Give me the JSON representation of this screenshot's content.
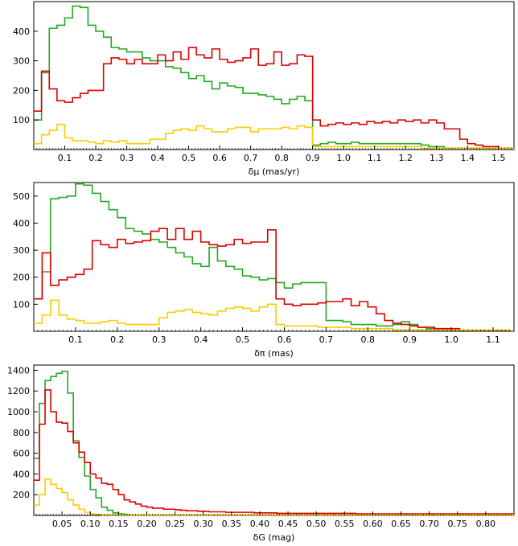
{
  "chart_data": [
    {
      "type": "histogram",
      "xlabel": "δμ (mas/yr)",
      "ylabel": "",
      "xlim": [
        0,
        1.55
      ],
      "ylim": [
        0,
        500
      ],
      "xticks": [
        0.1,
        0.2,
        0.3,
        0.4,
        0.5,
        0.6,
        0.7,
        0.8,
        0.9,
        1.0,
        1.1,
        1.2,
        1.3,
        1.4,
        1.5
      ],
      "xtick_labels": [
        "0.1",
        "0.2",
        "0.3",
        "0.4",
        "0.5",
        "0.6",
        "0.7",
        "0.8",
        "0.9",
        "1.0",
        "1.1",
        "1.2",
        "1.3",
        "1.4",
        "1.5"
      ],
      "yticks": [
        100,
        200,
        300,
        400
      ],
      "ytick_labels": [
        "100",
        "200",
        "300",
        "400"
      ],
      "x_minor_step": 0.01,
      "bin_width": 0.025,
      "series": [
        {
          "color": "#22aa22",
          "values": [
            100,
            260,
            410,
            420,
            445,
            485,
            480,
            420,
            400,
            380,
            345,
            340,
            330,
            330,
            310,
            300,
            300,
            280,
            275,
            260,
            240,
            250,
            230,
            205,
            225,
            215,
            210,
            190,
            190,
            185,
            180,
            170,
            155,
            170,
            180,
            165,
            15,
            20,
            25,
            20,
            20,
            25,
            20,
            20,
            20,
            20,
            20,
            20,
            20,
            20,
            15,
            10,
            10,
            5,
            5,
            5,
            5,
            5,
            5,
            5,
            5,
            5
          ]
        },
        {
          "color": "#dd0000",
          "values": [
            130,
            265,
            205,
            165,
            160,
            175,
            190,
            200,
            200,
            290,
            310,
            305,
            290,
            305,
            290,
            290,
            320,
            300,
            330,
            305,
            345,
            320,
            310,
            340,
            305,
            295,
            300,
            310,
            340,
            285,
            290,
            330,
            285,
            290,
            320,
            315,
            100,
            80,
            85,
            90,
            85,
            90,
            85,
            95,
            90,
            95,
            90,
            100,
            95,
            100,
            90,
            100,
            90,
            70,
            70,
            35,
            20,
            15,
            10,
            10,
            5,
            5
          ]
        },
        {
          "color": "#ffcc00",
          "values": [
            20,
            50,
            65,
            85,
            40,
            30,
            30,
            25,
            20,
            30,
            25,
            30,
            20,
            20,
            20,
            35,
            35,
            55,
            65,
            70,
            65,
            80,
            70,
            60,
            60,
            70,
            75,
            75,
            60,
            70,
            70,
            70,
            75,
            70,
            80,
            75,
            10,
            10,
            10,
            10,
            10,
            10,
            10,
            10,
            10,
            10,
            10,
            10,
            10,
            10,
            5,
            5,
            5,
            5,
            5,
            5,
            5,
            5,
            5,
            5,
            5,
            5
          ]
        }
      ]
    },
    {
      "type": "histogram",
      "xlabel": "δπ (mas)",
      "ylabel": "",
      "xlim": [
        0,
        1.15
      ],
      "ylim": [
        0,
        550
      ],
      "xticks": [
        0.1,
        0.2,
        0.3,
        0.4,
        0.5,
        0.6,
        0.7,
        0.8,
        0.9,
        1.0,
        1.1
      ],
      "xtick_labels": [
        "0.1",
        "0.2",
        "0.3",
        "0.4",
        "0.5",
        "0.6",
        "0.7",
        "0.8",
        "0.9",
        "1.0",
        "1.1"
      ],
      "yticks": [
        100,
        200,
        300,
        400,
        500
      ],
      "ytick_labels": [
        "100",
        "200",
        "300",
        "400",
        "500"
      ],
      "x_minor_step": 0.01,
      "bin_width": 0.02,
      "series": [
        {
          "color": "#22aa22",
          "values": [
            120,
            220,
            490,
            495,
            500,
            545,
            540,
            510,
            480,
            450,
            420,
            380,
            370,
            360,
            340,
            330,
            310,
            290,
            275,
            250,
            240,
            310,
            260,
            240,
            230,
            205,
            200,
            190,
            195,
            180,
            160,
            175,
            180,
            180,
            180,
            40,
            40,
            35,
            25,
            25,
            25,
            20,
            20,
            25,
            35,
            25,
            15,
            10,
            10,
            5,
            5,
            5,
            5,
            5,
            5,
            5,
            5
          ]
        },
        {
          "color": "#dd0000",
          "values": [
            120,
            290,
            170,
            190,
            200,
            210,
            230,
            335,
            320,
            310,
            340,
            325,
            330,
            335,
            370,
            380,
            340,
            380,
            340,
            370,
            330,
            320,
            315,
            320,
            340,
            325,
            330,
            330,
            375,
            120,
            100,
            95,
            100,
            100,
            105,
            110,
            110,
            120,
            95,
            110,
            90,
            65,
            40,
            30,
            25,
            20,
            15,
            15,
            10,
            10,
            10,
            5,
            5,
            5,
            5,
            5,
            5
          ]
        },
        {
          "color": "#ffcc00",
          "values": [
            30,
            60,
            115,
            60,
            45,
            40,
            30,
            30,
            35,
            40,
            30,
            25,
            25,
            25,
            25,
            50,
            70,
            75,
            80,
            70,
            65,
            60,
            75,
            85,
            90,
            85,
            75,
            90,
            100,
            25,
            20,
            20,
            20,
            20,
            15,
            15,
            15,
            15,
            10,
            10,
            10,
            10,
            10,
            5,
            5,
            5,
            5,
            5,
            5,
            5,
            5,
            5,
            5,
            5,
            5,
            5,
            5
          ]
        }
      ]
    },
    {
      "type": "histogram",
      "xlabel": "δG (mag)",
      "ylabel": "",
      "xlim": [
        0,
        0.85
      ],
      "ylim": [
        0,
        1450
      ],
      "xticks": [
        0.05,
        0.1,
        0.15,
        0.2,
        0.25,
        0.3,
        0.35,
        0.4,
        0.45,
        0.5,
        0.55,
        0.6,
        0.65,
        0.7,
        0.75,
        0.8
      ],
      "xtick_labels": [
        "0.05",
        "0.10",
        "0.15",
        "0.20",
        "0.25",
        "0.30",
        "0.35",
        "0.40",
        "0.45",
        "0.50",
        "0.55",
        "0.60",
        "0.65",
        "0.70",
        "0.75",
        "0.80"
      ],
      "yticks": [
        200,
        400,
        600,
        800,
        1000,
        1200,
        1400
      ],
      "ytick_labels": [
        "200",
        "400",
        "600",
        "800",
        "1000",
        "1200",
        "1400"
      ],
      "x_minor_step": 0.005,
      "bin_width": 0.01,
      "series": [
        {
          "color": "#22aa22",
          "values": [
            550,
            1080,
            1300,
            1340,
            1370,
            1390,
            1180,
            720,
            560,
            380,
            250,
            170,
            80,
            50,
            25,
            15,
            10,
            5,
            5,
            5,
            5,
            5,
            5,
            5,
            5,
            5,
            5,
            5,
            5,
            5,
            5,
            5,
            5,
            5,
            5,
            5,
            5,
            5,
            5,
            5,
            5,
            5,
            5,
            5,
            5,
            5,
            5,
            5,
            5,
            5,
            5,
            5,
            5,
            5,
            5,
            5,
            5,
            5,
            5,
            5,
            5,
            5,
            5,
            5,
            5,
            5,
            5,
            5,
            5,
            5,
            5,
            5,
            5,
            5,
            5,
            5,
            5,
            5,
            5,
            5,
            5,
            5,
            5,
            5,
            5
          ]
        },
        {
          "color": "#dd0000",
          "values": [
            340,
            880,
            1210,
            1000,
            900,
            890,
            810,
            700,
            610,
            510,
            400,
            360,
            310,
            300,
            250,
            200,
            150,
            130,
            110,
            90,
            80,
            70,
            70,
            60,
            60,
            55,
            50,
            45,
            45,
            40,
            40,
            35,
            35,
            35,
            30,
            30,
            30,
            30,
            30,
            25,
            25,
            25,
            25,
            20,
            20,
            20,
            20,
            20,
            20,
            20,
            20,
            20,
            20,
            20,
            20,
            20,
            20,
            15,
            15,
            15,
            15,
            15,
            15,
            15,
            15,
            15,
            15,
            15,
            15,
            15,
            15,
            15,
            15,
            15,
            15,
            15,
            15,
            15,
            15,
            15,
            15,
            15,
            15,
            15,
            15
          ]
        },
        {
          "color": "#ffcc00",
          "values": [
            100,
            200,
            350,
            300,
            260,
            220,
            150,
            100,
            60,
            30,
            15,
            10,
            5,
            5,
            5,
            5,
            5,
            5,
            5,
            5,
            5,
            5,
            5,
            5,
            5,
            5,
            5,
            5,
            5,
            5,
            5,
            5,
            5,
            5,
            5,
            5,
            5,
            5,
            5,
            5,
            5,
            5,
            5,
            5,
            5,
            5,
            5,
            5,
            5,
            5,
            5,
            5,
            5,
            5,
            5,
            5,
            5,
            5,
            5,
            5,
            5,
            5,
            5,
            5,
            5,
            5,
            5,
            5,
            5,
            5,
            5,
            5,
            5,
            5,
            5,
            5,
            5,
            5,
            5,
            5,
            5,
            5,
            5,
            5,
            5
          ]
        }
      ]
    }
  ]
}
